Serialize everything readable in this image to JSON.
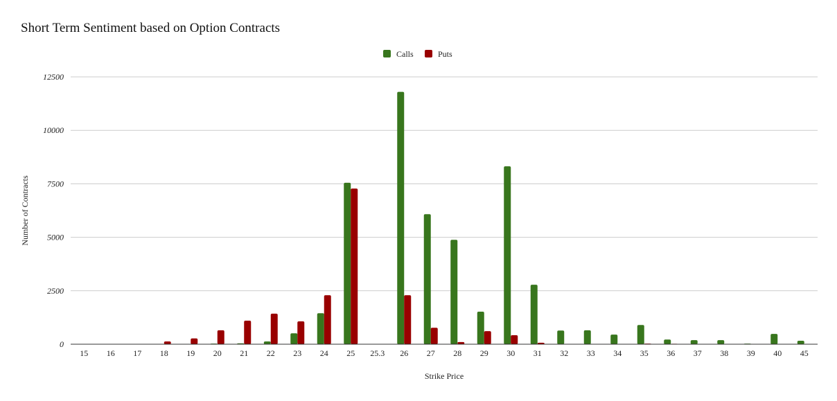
{
  "chart_data": {
    "type": "bar",
    "title": "Short Term Sentiment based on Option Contracts",
    "xlabel": "Strike Price",
    "ylabel": "Number of Contracts",
    "ylim": [
      0,
      12500
    ],
    "yticks": [
      "0",
      "2500",
      "5000",
      "7500",
      "10000",
      "12500"
    ],
    "ytick_values": [
      0,
      2500,
      5000,
      7500,
      10000,
      12500
    ],
    "legend": "top-center",
    "grid": true,
    "categories": [
      "15",
      "16",
      "17",
      "18",
      "19",
      "20",
      "21",
      "22",
      "23",
      "24",
      "25",
      "25.3",
      "26",
      "27",
      "28",
      "29",
      "30",
      "31",
      "32",
      "33",
      "34",
      "35",
      "36",
      "37",
      "38",
      "39",
      "40",
      "45"
    ],
    "series": [
      {
        "name": "Calls",
        "color": "#38761d",
        "values": [
          0,
          0,
          0,
          0,
          0,
          30,
          40,
          130,
          510,
          1450,
          7550,
          0,
          11800,
          6080,
          4880,
          1520,
          8320,
          2780,
          640,
          650,
          450,
          900,
          220,
          190,
          190,
          30,
          480,
          160
        ]
      },
      {
        "name": "Puts",
        "color": "#990000",
        "values": [
          0,
          0,
          0,
          130,
          270,
          650,
          1100,
          1430,
          1070,
          2290,
          7280,
          0,
          2290,
          770,
          100,
          610,
          420,
          70,
          0,
          0,
          0,
          30,
          20,
          0,
          0,
          0,
          0,
          0
        ]
      }
    ]
  }
}
